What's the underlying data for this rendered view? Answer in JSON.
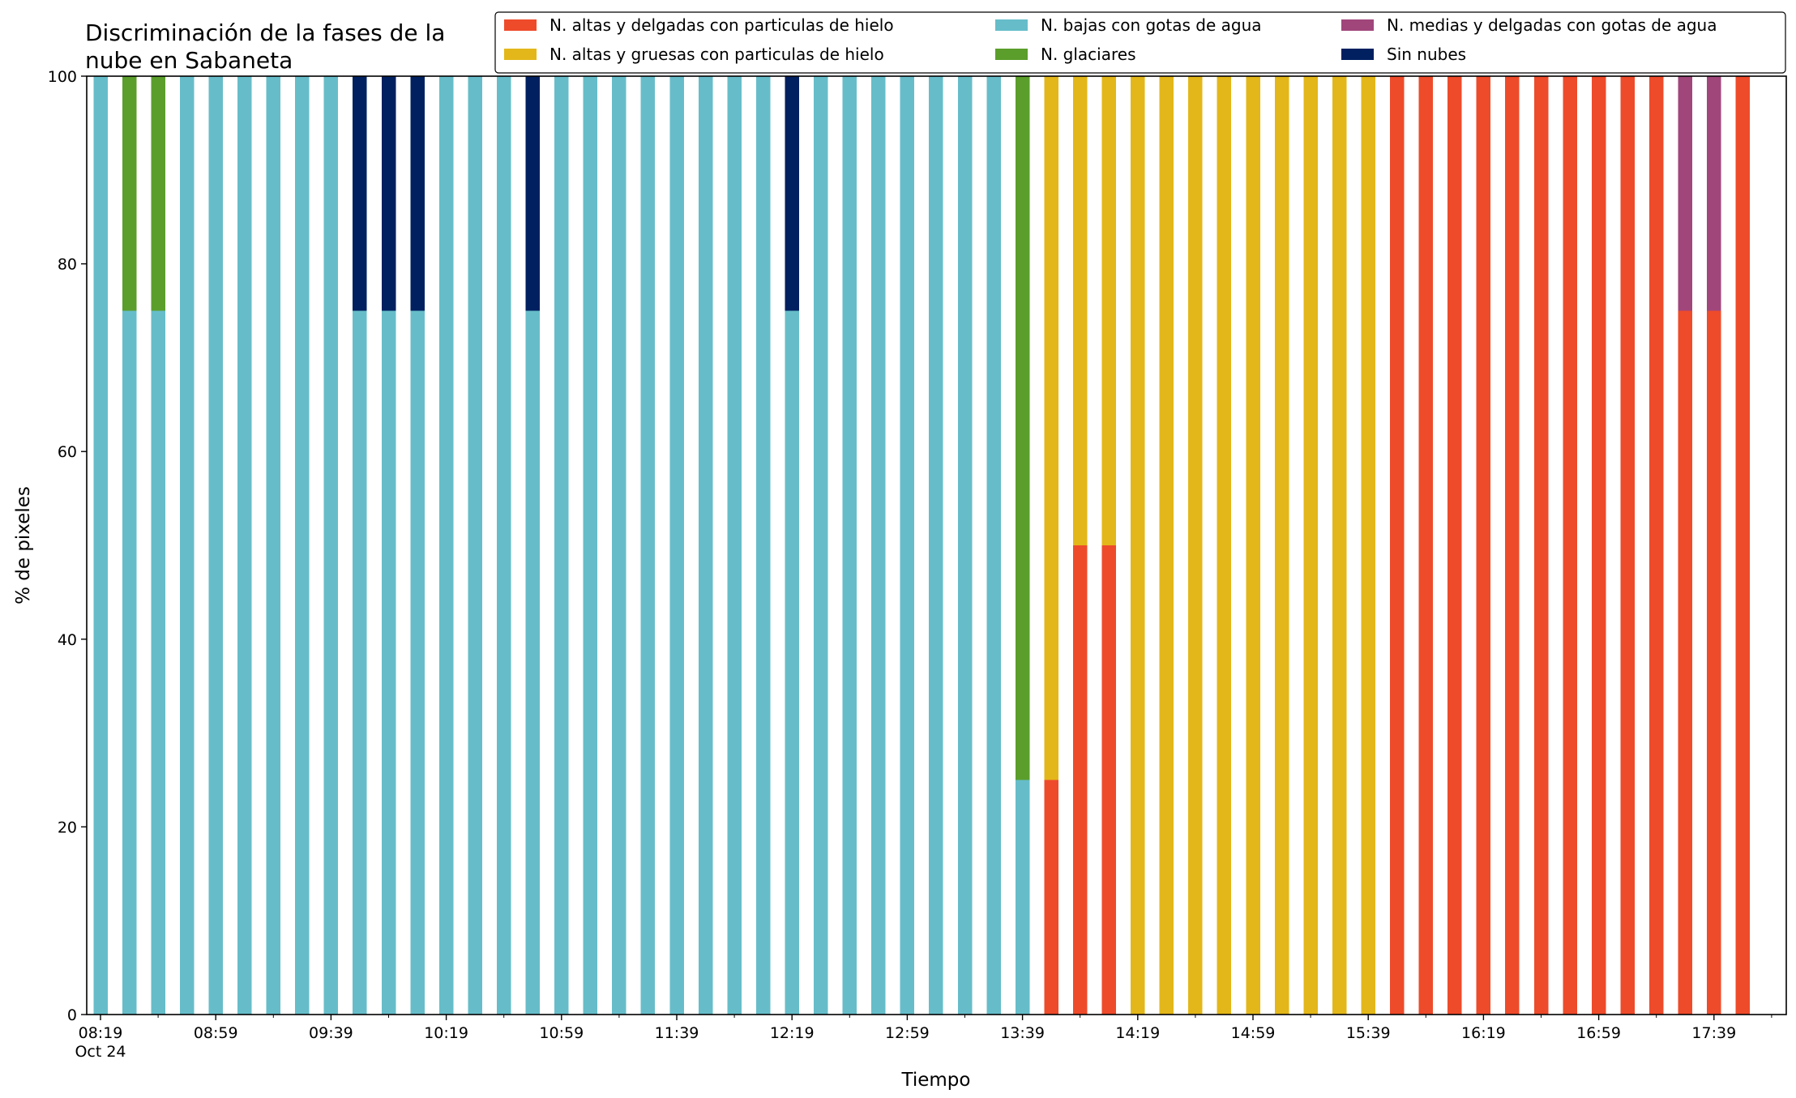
{
  "chart_data": {
    "type": "bar",
    "stacked": true,
    "title_lines": [
      "Discriminación de la fases de la",
      "nube en Sabaneta"
    ],
    "xlabel": "Tiempo",
    "ylabel": "% de pixeles",
    "ylim": [
      0,
      100
    ],
    "yticks": [
      "0",
      "20",
      "40",
      "60",
      "80",
      "100"
    ],
    "xtick_labels": [
      "08:19",
      "08:59",
      "09:39",
      "10:19",
      "10:59",
      "11:39",
      "12:19",
      "12:59",
      "13:39",
      "14:19",
      "14:59",
      "15:39",
      "16:19",
      "16:59",
      "17:39"
    ],
    "xtick_sublabel": "Oct 24",
    "bar_interval_minutes": 10,
    "legend_position": "top-right",
    "legend": [
      {
        "key": "altas_delgadas",
        "name": "N. altas y delgadas con particulas de hielo",
        "color": "#EE4B2B"
      },
      {
        "key": "altas_gruesas",
        "name": "N. altas y gruesas con particulas de hielo",
        "color": "#E3B719"
      },
      {
        "key": "bajas",
        "name": "N. bajas con gotas de agua",
        "color": "#66BDC9"
      },
      {
        "key": "glaciares",
        "name": "N. glaciares",
        "color": "#5B9E2B"
      },
      {
        "key": "medias",
        "name": "N. medias y delgadas con gotas de agua",
        "color": "#A0467B"
      },
      {
        "key": "sin_nubes",
        "name": "Sin nubes",
        "color": "#002060"
      }
    ],
    "stack_order": [
      "altas_delgadas",
      "medias",
      "altas_gruesas",
      "bajas",
      "glaciares",
      "sin_nubes"
    ],
    "bars": [
      {
        "time": "08:19",
        "bajas": 100
      },
      {
        "time": "08:29",
        "bajas": 75,
        "glaciares": 25
      },
      {
        "time": "08:39",
        "bajas": 75,
        "glaciares": 25
      },
      {
        "time": "08:49",
        "bajas": 100
      },
      {
        "time": "08:59",
        "bajas": 100
      },
      {
        "time": "09:09",
        "bajas": 100
      },
      {
        "time": "09:19",
        "bajas": 100
      },
      {
        "time": "09:29",
        "bajas": 100
      },
      {
        "time": "09:39",
        "bajas": 100
      },
      {
        "time": "09:49",
        "bajas": 75,
        "sin_nubes": 25
      },
      {
        "time": "09:59",
        "bajas": 75,
        "sin_nubes": 25
      },
      {
        "time": "10:09",
        "bajas": 75,
        "sin_nubes": 25
      },
      {
        "time": "10:19",
        "bajas": 100
      },
      {
        "time": "10:29",
        "bajas": 100
      },
      {
        "time": "10:39",
        "bajas": 100
      },
      {
        "time": "10:49",
        "bajas": 75,
        "sin_nubes": 25
      },
      {
        "time": "10:59",
        "bajas": 100
      },
      {
        "time": "11:09",
        "bajas": 100
      },
      {
        "time": "11:19",
        "bajas": 100
      },
      {
        "time": "11:29",
        "bajas": 100
      },
      {
        "time": "11:39",
        "bajas": 100
      },
      {
        "time": "11:49",
        "bajas": 100
      },
      {
        "time": "11:59",
        "bajas": 100
      },
      {
        "time": "12:09",
        "bajas": 100
      },
      {
        "time": "12:19",
        "bajas": 75,
        "sin_nubes": 25
      },
      {
        "time": "12:29",
        "bajas": 100
      },
      {
        "time": "12:39",
        "bajas": 100
      },
      {
        "time": "12:49",
        "bajas": 100
      },
      {
        "time": "12:59",
        "bajas": 100
      },
      {
        "time": "13:09",
        "bajas": 100
      },
      {
        "time": "13:19",
        "bajas": 100
      },
      {
        "time": "13:29",
        "bajas": 100
      },
      {
        "time": "13:39",
        "bajas": 25,
        "glaciares": 75
      },
      {
        "time": "13:49",
        "altas_delgadas": 25,
        "altas_gruesas": 75
      },
      {
        "time": "13:59",
        "altas_delgadas": 50,
        "altas_gruesas": 50
      },
      {
        "time": "14:09",
        "altas_delgadas": 50,
        "altas_gruesas": 50
      },
      {
        "time": "14:19",
        "altas_gruesas": 100
      },
      {
        "time": "14:29",
        "altas_gruesas": 100
      },
      {
        "time": "14:39",
        "altas_gruesas": 100
      },
      {
        "time": "14:49",
        "altas_gruesas": 100
      },
      {
        "time": "14:59",
        "altas_gruesas": 100
      },
      {
        "time": "15:09",
        "altas_gruesas": 100
      },
      {
        "time": "15:19",
        "altas_gruesas": 100
      },
      {
        "time": "15:29",
        "altas_gruesas": 100
      },
      {
        "time": "15:39",
        "altas_gruesas": 100
      },
      {
        "time": "15:49",
        "altas_delgadas": 100
      },
      {
        "time": "15:59",
        "altas_delgadas": 100
      },
      {
        "time": "16:09",
        "altas_delgadas": 100
      },
      {
        "time": "16:19",
        "altas_delgadas": 100
      },
      {
        "time": "16:29",
        "altas_delgadas": 100
      },
      {
        "time": "16:39",
        "altas_delgadas": 100
      },
      {
        "time": "16:49",
        "altas_delgadas": 100
      },
      {
        "time": "16:59",
        "altas_delgadas": 100
      },
      {
        "time": "17:09",
        "altas_delgadas": 100
      },
      {
        "time": "17:19",
        "altas_delgadas": 100
      },
      {
        "time": "17:29",
        "altas_delgadas": 75,
        "medias": 25
      },
      {
        "time": "17:39",
        "altas_delgadas": 75,
        "medias": 25
      },
      {
        "time": "17:49",
        "altas_delgadas": 100
      }
    ]
  }
}
